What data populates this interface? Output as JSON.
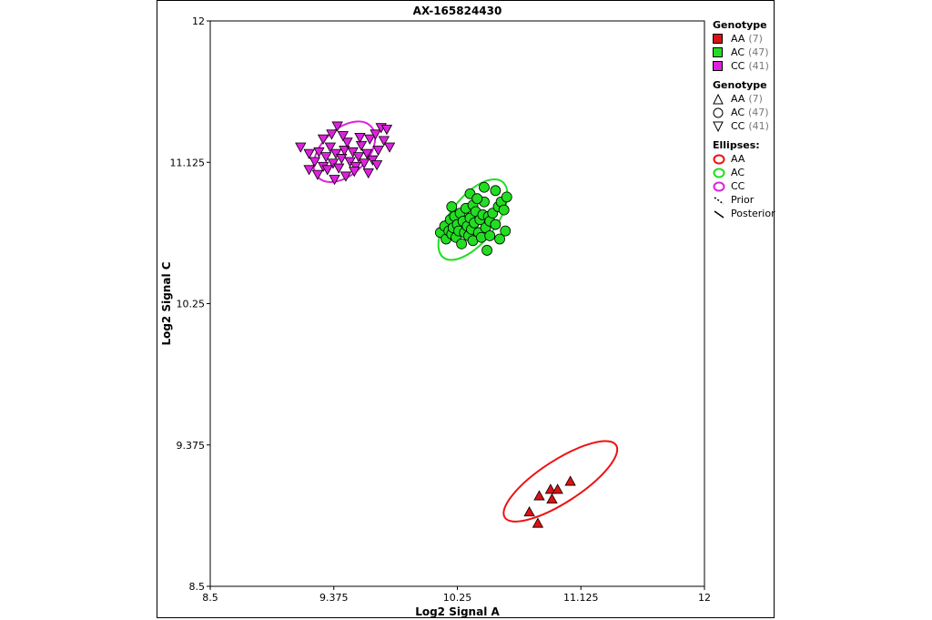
{
  "chart_data": {
    "type": "scatter",
    "title": "AX-165824430",
    "xlabel": "Log2 Signal A",
    "ylabel": "Log2 Signal C",
    "xlim": [
      8.5,
      12
    ],
    "ylim": [
      8.5,
      12
    ],
    "xticks": [
      "8.5",
      "9.375",
      "10.25",
      "11.125",
      "12"
    ],
    "yticks": [
      "8.5",
      "9.375",
      "10.25",
      "11.125",
      "12"
    ],
    "grid": false,
    "legend_placement": "right",
    "series": [
      {
        "name": "AA",
        "count": 7,
        "color": "#dd1111",
        "marker": "triangle-up",
        "points": [
          [
            10.76,
            8.96
          ],
          [
            10.83,
            9.06
          ],
          [
            10.91,
            9.1
          ],
          [
            10.82,
            8.89
          ],
          [
            10.92,
            9.04
          ],
          [
            10.96,
            9.1
          ],
          [
            11.05,
            9.15
          ]
        ]
      },
      {
        "name": "AC",
        "count": 47,
        "color": "#22dd22",
        "marker": "circle",
        "points": [
          [
            10.13,
            10.69
          ],
          [
            10.16,
            10.73
          ],
          [
            10.17,
            10.65
          ],
          [
            10.19,
            10.7
          ],
          [
            10.2,
            10.77
          ],
          [
            10.21,
            10.68
          ],
          [
            10.22,
            10.72
          ],
          [
            10.23,
            10.79
          ],
          [
            10.24,
            10.66
          ],
          [
            10.25,
            10.74
          ],
          [
            10.26,
            10.7
          ],
          [
            10.27,
            10.81
          ],
          [
            10.28,
            10.62
          ],
          [
            10.29,
            10.76
          ],
          [
            10.3,
            10.69
          ],
          [
            10.31,
            10.84
          ],
          [
            10.32,
            10.73
          ],
          [
            10.33,
            10.67
          ],
          [
            10.34,
            10.78
          ],
          [
            10.35,
            10.71
          ],
          [
            10.36,
            10.86
          ],
          [
            10.37,
            10.75
          ],
          [
            10.38,
            10.82
          ],
          [
            10.4,
            10.69
          ],
          [
            10.41,
            10.77
          ],
          [
            10.43,
            10.8
          ],
          [
            10.44,
            10.88
          ],
          [
            10.45,
            10.72
          ],
          [
            10.47,
            10.79
          ],
          [
            10.48,
            10.76
          ],
          [
            10.5,
            10.81
          ],
          [
            10.52,
            10.74
          ],
          [
            10.54,
            10.85
          ],
          [
            10.56,
            10.88
          ],
          [
            10.58,
            10.83
          ],
          [
            10.6,
            10.91
          ],
          [
            10.36,
            10.64
          ],
          [
            10.42,
            10.66
          ],
          [
            10.48,
            10.67
          ],
          [
            10.55,
            10.65
          ],
          [
            10.34,
            10.93
          ],
          [
            10.39,
            10.9
          ],
          [
            10.44,
            10.97
          ],
          [
            10.52,
            10.95
          ],
          [
            10.21,
            10.85
          ],
          [
            10.46,
            10.58
          ],
          [
            10.59,
            10.7
          ]
        ]
      },
      {
        "name": "CC",
        "count": 41,
        "color": "#dd22dd",
        "marker": "triangle-down",
        "points": [
          [
            9.14,
            11.22
          ],
          [
            9.2,
            11.18
          ],
          [
            9.24,
            11.13
          ],
          [
            9.27,
            11.19
          ],
          [
            9.3,
            11.1
          ],
          [
            9.32,
            11.16
          ],
          [
            9.35,
            11.22
          ],
          [
            9.37,
            11.12
          ],
          [
            9.39,
            11.18
          ],
          [
            9.41,
            11.09
          ],
          [
            9.43,
            11.15
          ],
          [
            9.45,
            11.2
          ],
          [
            9.47,
            11.25
          ],
          [
            9.49,
            11.13
          ],
          [
            9.51,
            11.19
          ],
          [
            9.53,
            11.1
          ],
          [
            9.55,
            11.16
          ],
          [
            9.57,
            11.23
          ],
          [
            9.59,
            11.12
          ],
          [
            9.61,
            11.18
          ],
          [
            9.63,
            11.27
          ],
          [
            9.65,
            11.14
          ],
          [
            9.67,
            11.3
          ],
          [
            9.69,
            11.2
          ],
          [
            9.71,
            11.34
          ],
          [
            9.73,
            11.26
          ],
          [
            9.75,
            11.33
          ],
          [
            9.77,
            11.22
          ],
          [
            9.36,
            11.3
          ],
          [
            9.4,
            11.35
          ],
          [
            9.44,
            11.29
          ],
          [
            9.33,
            11.08
          ],
          [
            9.26,
            11.05
          ],
          [
            9.38,
            11.02
          ],
          [
            9.52,
            11.07
          ],
          [
            9.62,
            11.06
          ],
          [
            9.68,
            11.11
          ],
          [
            9.2,
            11.08
          ],
          [
            9.46,
            11.04
          ],
          [
            9.56,
            11.28
          ],
          [
            9.3,
            11.27
          ]
        ]
      }
    ],
    "ellipses": [
      {
        "name": "AA",
        "color": "#ee1111",
        "center": [
          10.98,
          9.15
        ],
        "rx": 0.47,
        "ry": 0.13,
        "angle": -33
      },
      {
        "name": "AC",
        "color": "#22dd22",
        "center": [
          10.36,
          10.77
        ],
        "rx": 0.34,
        "ry": 0.14,
        "angle": -52
      },
      {
        "name": "CC",
        "color": "#dd22dd",
        "center": [
          9.45,
          11.19
        ],
        "rx": 0.26,
        "ry": 0.14,
        "angle": -44
      }
    ]
  },
  "legend": {
    "genotype_title": "Genotype",
    "genotype_title2": "Genotype",
    "ellipses_title": "Ellipses:",
    "items": [
      {
        "label": "AA",
        "count": "(7)"
      },
      {
        "label": "AC",
        "count": "(47)"
      },
      {
        "label": "CC",
        "count": "(41)"
      }
    ],
    "ellipse_items": [
      "AA",
      "AC",
      "CC"
    ],
    "prior_label": "Prior",
    "posterior_label": "Posterior"
  }
}
